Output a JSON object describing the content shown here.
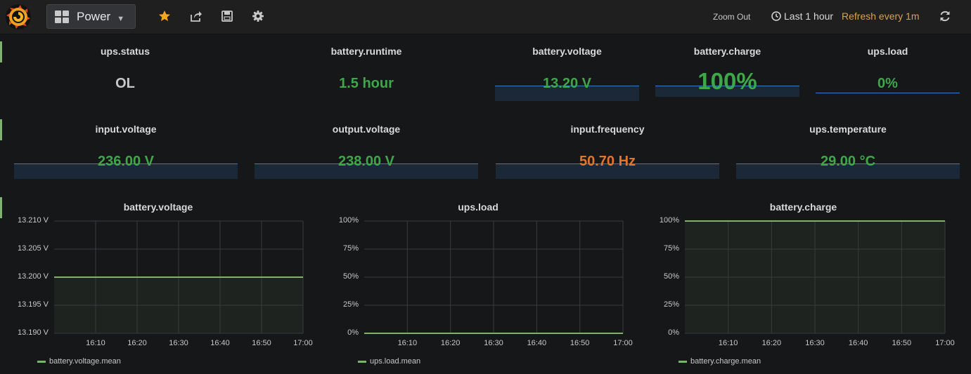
{
  "navbar": {
    "dashboard_title": "Power",
    "zoom_out_label": "Zoom Out",
    "time_range_label": "Last 1 hour",
    "refresh_label": "Refresh every 1m",
    "icons": [
      "grafana-logo-icon",
      "dashboard-grid-icon",
      "star-icon",
      "share-icon",
      "save-icon",
      "settings-icon",
      "clock-icon",
      "refresh-icon"
    ]
  },
  "stats_row1": [
    {
      "title": "ups.status",
      "value": "OL",
      "color": "#c8c8c8"
    },
    {
      "title": "battery.runtime",
      "value": "1.5 hour",
      "color": "#3fa64a"
    },
    {
      "title": "battery.voltage",
      "value": "13.20 V",
      "color": "#3fa64a"
    },
    {
      "title": "battery.charge",
      "value": "100%",
      "color": "#3fa64a"
    },
    {
      "title": "ups.load",
      "value": "0%",
      "color": "#3fa64a"
    }
  ],
  "stats_row2": [
    {
      "title": "input.voltage",
      "value": "236.00 V",
      "color": "#3fa64a"
    },
    {
      "title": "output.voltage",
      "value": "238.00 V",
      "color": "#3fa64a"
    },
    {
      "title": "input.frequency",
      "value": "50.70 Hz",
      "color": "#e0752d"
    },
    {
      "title": "ups.temperature",
      "value": "29.00 °C",
      "color": "#3fa64a"
    }
  ],
  "chart_data": [
    {
      "type": "line",
      "title": "battery.voltage",
      "x": [
        "16:10",
        "16:20",
        "16:30",
        "16:40",
        "16:50",
        "17:00"
      ],
      "yticks": [
        "13.210 V",
        "13.205 V",
        "13.200 V",
        "13.195 V",
        "13.190 V"
      ],
      "ylim": [
        13.19,
        13.21
      ],
      "series": [
        {
          "name": "battery.voltage.mean",
          "values": [
            13.2,
            13.2,
            13.2,
            13.2,
            13.2,
            13.2
          ],
          "color": "#7eb26d"
        }
      ],
      "legend": "bottom-left",
      "grid": true
    },
    {
      "type": "line",
      "title": "ups.load",
      "x": [
        "16:10",
        "16:20",
        "16:30",
        "16:40",
        "16:50",
        "17:00"
      ],
      "yticks": [
        "100%",
        "75%",
        "50%",
        "25%",
        "0%"
      ],
      "ylim": [
        0,
        100
      ],
      "series": [
        {
          "name": "ups.load.mean",
          "values": [
            0,
            0,
            0,
            0,
            0,
            0
          ],
          "color": "#7eb26d"
        }
      ],
      "legend": "bottom-left",
      "grid": true
    },
    {
      "type": "line",
      "title": "battery.charge",
      "x": [
        "16:10",
        "16:20",
        "16:30",
        "16:40",
        "16:50",
        "17:00"
      ],
      "yticks": [
        "100%",
        "75%",
        "50%",
        "25%",
        "0%"
      ],
      "ylim": [
        0,
        100
      ],
      "series": [
        {
          "name": "battery.charge.mean",
          "values": [
            100,
            100,
            100,
            100,
            100,
            100
          ],
          "color": "#7eb26d"
        }
      ],
      "legend": "bottom-left",
      "grid": true
    }
  ]
}
